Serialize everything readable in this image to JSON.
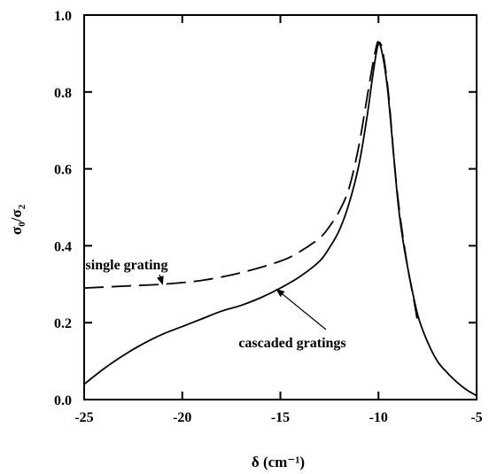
{
  "chart_data": {
    "type": "line",
    "xlabel": "δ (cm⁻¹)",
    "ylabel_main": "σ",
    "ylabel_sub1": "0",
    "ylabel_sep": "/σ",
    "ylabel_sub2": "2",
    "xlim": [
      -25,
      -5
    ],
    "ylim": [
      0,
      1.0
    ],
    "xticks": [
      -25,
      -20,
      -15,
      -10,
      -5
    ],
    "xtick_labels": [
      "-25",
      "-20",
      "-15",
      "-10",
      "-5"
    ],
    "yticks": [
      0,
      0.2,
      0.4,
      0.6,
      0.8,
      1.0
    ],
    "ytick_labels": [
      "0.0",
      "0.2",
      "0.4",
      "0.6",
      "0.8",
      "1.0"
    ],
    "grid": false,
    "series": [
      {
        "name": "single grating",
        "style": "dashed",
        "x": [
          -25,
          -23,
          -21,
          -19,
          -17,
          -15,
          -14,
          -13,
          -12.5,
          -12,
          -11.5,
          -11,
          -10.6,
          -10.3,
          -10.1,
          -10.0,
          -9.8,
          -9.5,
          -9.2,
          -9.0,
          -8.8,
          -8.5,
          -8.2,
          -8.0
        ],
        "y": [
          0.29,
          0.295,
          0.3,
          0.31,
          0.33,
          0.36,
          0.385,
          0.42,
          0.45,
          0.49,
          0.55,
          0.66,
          0.78,
          0.87,
          0.92,
          0.93,
          0.91,
          0.8,
          0.62,
          0.52,
          0.44,
          0.34,
          0.26,
          0.2
        ]
      },
      {
        "name": "cascaded gratings",
        "style": "solid",
        "x": [
          -25,
          -24,
          -23,
          -22,
          -21,
          -20,
          -19,
          -18,
          -17,
          -16,
          -15,
          -14,
          -13,
          -12.5,
          -12,
          -11.5,
          -11,
          -10.6,
          -10.3,
          -10.1,
          -10.0,
          -9.9,
          -9.7,
          -9.5,
          -9.2,
          -9.0,
          -8.8,
          -8.5,
          -8.0,
          -7.5,
          -7.0,
          -6.5,
          -6.0,
          -5.5,
          -5.0
        ],
        "y": [
          0.04,
          0.08,
          0.115,
          0.145,
          0.17,
          0.19,
          0.21,
          0.23,
          0.245,
          0.265,
          0.29,
          0.32,
          0.36,
          0.395,
          0.44,
          0.51,
          0.61,
          0.73,
          0.84,
          0.905,
          0.925,
          0.92,
          0.87,
          0.79,
          0.62,
          0.51,
          0.43,
          0.34,
          0.22,
          0.15,
          0.1,
          0.07,
          0.045,
          0.025,
          0.01
        ]
      }
    ],
    "annotations": [
      {
        "text": "single grating",
        "target_series": 0,
        "target_x": -21.0,
        "target_y": 0.3
      },
      {
        "text": "cascaded gratings",
        "target_series": 1,
        "target_x": -15.2,
        "target_y": 0.287
      }
    ]
  }
}
